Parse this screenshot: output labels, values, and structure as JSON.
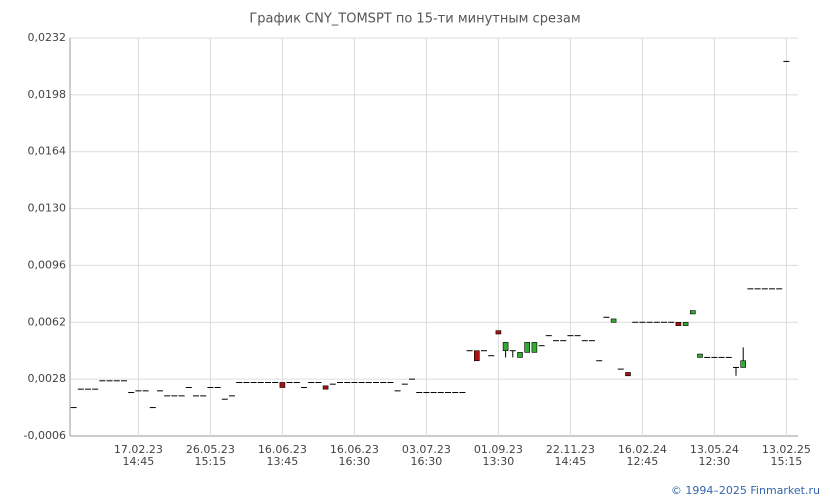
{
  "chart_data": {
    "type": "candlestick",
    "title": "График CNY_TOMSPT по 15-ти минутным срезам",
    "source": "© 1994–2025 Finmarket.ru",
    "categories": [
      null,
      null,
      null,
      null,
      null,
      null,
      null,
      null,
      null,
      {
        "date": "17.02.23",
        "time": "14:45"
      },
      null,
      null,
      null,
      null,
      null,
      null,
      null,
      null,
      null,
      {
        "date": "26.05.23",
        "time": "15:15"
      },
      null,
      null,
      null,
      null,
      null,
      null,
      null,
      null,
      null,
      {
        "date": "16.06.23",
        "time": "13:45"
      },
      null,
      null,
      null,
      null,
      null,
      null,
      null,
      null,
      null,
      {
        "date": "16.06.23",
        "time": "16:30"
      },
      null,
      null,
      null,
      null,
      null,
      null,
      null,
      null,
      null,
      {
        "date": "03.07.23",
        "time": "16:30"
      },
      null,
      null,
      null,
      null,
      null,
      null,
      null,
      null,
      null,
      {
        "date": "01.09.23",
        "time": "13:30"
      },
      null,
      null,
      null,
      null,
      null,
      null,
      null,
      null,
      null,
      {
        "date": "22.11.23",
        "time": "14:45"
      },
      null,
      null,
      null,
      null,
      null,
      null,
      null,
      null,
      null,
      {
        "date": "16.02.24",
        "time": "12:45"
      },
      null,
      null,
      null,
      null,
      null,
      null,
      null,
      null,
      null,
      {
        "date": "13.05.24",
        "time": "12:30"
      },
      null,
      null,
      null,
      null,
      null,
      null,
      null,
      null,
      null,
      {
        "date": "13.02.25",
        "time": "15:15"
      }
    ],
    "open": [
      0.0011,
      0.0022,
      0.0022,
      0.0022,
      0.0027,
      0.0027,
      0.0027,
      0.0027,
      0.002,
      0.0021,
      0.0021,
      0.0011,
      0.0021,
      0.0018,
      0.0018,
      0.0018,
      0.0023,
      0.0018,
      0.0018,
      0.0023,
      0.0023,
      0.0016,
      0.0018,
      0.0026,
      0.0026,
      0.0026,
      0.0026,
      0.0026,
      0.0026,
      0.0026,
      0.0026,
      0.0026,
      0.0023,
      0.0026,
      0.0026,
      0.0024,
      0.0025,
      0.0026,
      0.0026,
      0.0026,
      0.0026,
      0.0026,
      0.0026,
      0.0026,
      0.0026,
      0.0021,
      0.0025,
      0.0028,
      0.002,
      0.002,
      0.002,
      0.002,
      0.002,
      0.002,
      0.002,
      0.0045,
      0.0045,
      0.0045,
      0.0042,
      0.0057,
      0.0045,
      0.0045,
      0.0041,
      0.0044,
      0.0044,
      0.0048,
      0.0054,
      0.0051,
      0.0051,
      0.0054,
      0.0054,
      0.0051,
      0.0051,
      0.0039,
      0.0065,
      0.0062,
      0.0034,
      0.0032,
      0.0062,
      0.0062,
      0.0062,
      0.0062,
      0.0062,
      0.0062,
      0.0062,
      0.006,
      0.0067,
      0.0041,
      0.0041,
      0.0041,
      0.0041,
      0.0041,
      0.0035,
      0.0035,
      0.0082,
      0.0082,
      0.0082,
      0.0082,
      0.0082,
      0.0218
    ],
    "high": [
      0.0011,
      0.0022,
      0.0022,
      0.0022,
      0.0027,
      0.0027,
      0.0027,
      0.0027,
      0.002,
      0.0021,
      0.0021,
      0.0011,
      0.0021,
      0.0018,
      0.0018,
      0.0018,
      0.0023,
      0.0018,
      0.0018,
      0.0023,
      0.0023,
      0.0016,
      0.0018,
      0.0026,
      0.0026,
      0.0026,
      0.0026,
      0.0026,
      0.0026,
      0.0026,
      0.0026,
      0.0026,
      0.0023,
      0.0026,
      0.0026,
      0.0024,
      0.0025,
      0.0026,
      0.0026,
      0.0026,
      0.0026,
      0.0026,
      0.0026,
      0.0026,
      0.0026,
      0.0021,
      0.0025,
      0.0028,
      0.002,
      0.002,
      0.002,
      0.002,
      0.002,
      0.002,
      0.002,
      0.0045,
      0.0045,
      0.0045,
      0.0042,
      0.0057,
      0.005,
      0.0045,
      0.0044,
      0.005,
      0.005,
      0.0048,
      0.0054,
      0.0051,
      0.0051,
      0.0054,
      0.0054,
      0.0051,
      0.0051,
      0.0039,
      0.0065,
      0.0064,
      0.0034,
      0.0032,
      0.0062,
      0.0062,
      0.0062,
      0.0062,
      0.0062,
      0.0062,
      0.0062,
      0.0062,
      0.0069,
      0.0043,
      0.0041,
      0.0041,
      0.0041,
      0.0041,
      0.0035,
      0.0047,
      0.0082,
      0.0082,
      0.0082,
      0.0082,
      0.0082,
      0.0218
    ],
    "low": [
      0.0011,
      0.0022,
      0.0022,
      0.0022,
      0.0027,
      0.0027,
      0.0027,
      0.0027,
      0.002,
      0.0021,
      0.0021,
      0.0011,
      0.0021,
      0.0018,
      0.0018,
      0.0018,
      0.0023,
      0.0018,
      0.0018,
      0.0023,
      0.0023,
      0.0016,
      0.0018,
      0.0026,
      0.0026,
      0.0026,
      0.0026,
      0.0026,
      0.0026,
      0.0023,
      0.0026,
      0.0026,
      0.0023,
      0.0026,
      0.0026,
      0.0022,
      0.0025,
      0.0026,
      0.0026,
      0.0026,
      0.0026,
      0.0026,
      0.0026,
      0.0026,
      0.0026,
      0.0021,
      0.0025,
      0.0028,
      0.002,
      0.002,
      0.002,
      0.002,
      0.002,
      0.002,
      0.002,
      0.0045,
      0.0039,
      0.0045,
      0.0042,
      0.0055,
      0.0041,
      0.0041,
      0.0041,
      0.0044,
      0.0044,
      0.0048,
      0.0054,
      0.0051,
      0.0051,
      0.0054,
      0.0054,
      0.0051,
      0.0051,
      0.0039,
      0.0065,
      0.0062,
      0.0034,
      0.003,
      0.0062,
      0.0062,
      0.0062,
      0.0062,
      0.0062,
      0.0062,
      0.006,
      0.006,
      0.0067,
      0.0041,
      0.0041,
      0.0041,
      0.0041,
      0.0041,
      0.003,
      0.0035,
      0.0082,
      0.0082,
      0.0082,
      0.0082,
      0.0082,
      0.0218
    ],
    "close": [
      0.0011,
      0.0022,
      0.0022,
      0.0022,
      0.0027,
      0.0027,
      0.0027,
      0.0027,
      0.002,
      0.0021,
      0.0021,
      0.0011,
      0.0021,
      0.0018,
      0.0018,
      0.0018,
      0.0023,
      0.0018,
      0.0018,
      0.0023,
      0.0023,
      0.0016,
      0.0018,
      0.0026,
      0.0026,
      0.0026,
      0.0026,
      0.0026,
      0.0026,
      0.0023,
      0.0026,
      0.0026,
      0.0023,
      0.0026,
      0.0026,
      0.0022,
      0.0025,
      0.0026,
      0.0026,
      0.0026,
      0.0026,
      0.0026,
      0.0026,
      0.0026,
      0.0026,
      0.0021,
      0.0025,
      0.0028,
      0.002,
      0.002,
      0.002,
      0.002,
      0.002,
      0.002,
      0.002,
      0.0045,
      0.0039,
      0.0045,
      0.0042,
      0.0055,
      0.005,
      0.0045,
      0.0044,
      0.005,
      0.005,
      0.0048,
      0.0054,
      0.0051,
      0.0051,
      0.0054,
      0.0054,
      0.0051,
      0.0051,
      0.0039,
      0.0065,
      0.0064,
      0.0034,
      0.003,
      0.0062,
      0.0062,
      0.0062,
      0.0062,
      0.0062,
      0.0062,
      0.006,
      0.0062,
      0.0069,
      0.0043,
      0.0041,
      0.0041,
      0.0041,
      0.0041,
      0.0035,
      0.0039,
      0.0082,
      0.0082,
      0.0082,
      0.0082,
      0.0082,
      0.0218
    ],
    "up_color": "#33aa33",
    "down_color": "#aa1111",
    "flat_color": "#000000",
    "ylim": [
      -0.0006,
      0.0232
    ],
    "yticks": [
      {
        "value": -0.0006,
        "label": "-0,0006"
      },
      {
        "value": 0.0028,
        "label": "0,0028"
      },
      {
        "value": 0.0062,
        "label": "0,0062"
      },
      {
        "value": 0.0096,
        "label": "0,0096"
      },
      {
        "value": 0.013,
        "label": "0,0130"
      },
      {
        "value": 0.0164,
        "label": "0,0164"
      },
      {
        "value": 0.0198,
        "label": "0,0198"
      },
      {
        "value": 0.0232,
        "label": "0,0232"
      }
    ],
    "grid": true
  }
}
